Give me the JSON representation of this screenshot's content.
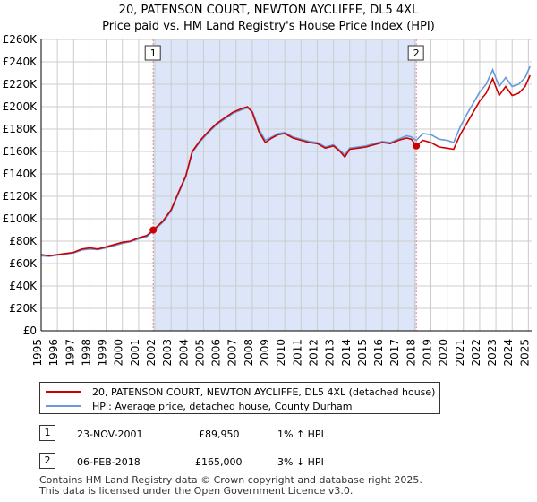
{
  "title_line1": "20, PATENSON COURT, NEWTON AYCLIFFE, DL5 4XL",
  "title_line2": "Price paid vs. HM Land Registry's House Price Index (HPI)",
  "colors": {
    "property": "#cc0000",
    "hpi": "#6699dd",
    "shade": "#dde6f8",
    "grid": "#cccccc",
    "marker_line": "#e08080"
  },
  "chart_data": {
    "type": "line",
    "title": "Price paid vs. HM Land Registry's House Price Index (HPI)",
    "xlabel": "",
    "ylabel": "",
    "xlim": [
      1995,
      2025.2
    ],
    "ylim": [
      0,
      260000
    ],
    "y_ticks": [
      0,
      20000,
      40000,
      60000,
      80000,
      100000,
      120000,
      140000,
      160000,
      180000,
      200000,
      220000,
      240000,
      260000
    ],
    "y_tick_labels": [
      "£0",
      "£20K",
      "£40K",
      "£60K",
      "£80K",
      "£100K",
      "£120K",
      "£140K",
      "£160K",
      "£180K",
      "£200K",
      "£220K",
      "£240K",
      "£260K"
    ],
    "x_ticks": [
      1995,
      1996,
      1997,
      1998,
      1999,
      2000,
      2001,
      2002,
      2003,
      2004,
      2005,
      2006,
      2007,
      2008,
      2009,
      2010,
      2011,
      2012,
      2013,
      2014,
      2015,
      2016,
      2017,
      2018,
      2019,
      2020,
      2021,
      2022,
      2023,
      2024,
      2025
    ],
    "x_tick_labels": [
      "1995",
      "1996",
      "1997",
      "1998",
      "1999",
      "2000",
      "2001",
      "2002",
      "2003",
      "2004",
      "2005",
      "2006",
      "2007",
      "2008",
      "2009",
      "2010",
      "2011",
      "2012",
      "2013",
      "2014",
      "2015",
      "2016",
      "2017",
      "2018",
      "2019",
      "2020",
      "2021",
      "2022",
      "2023",
      "2024",
      "2025"
    ],
    "shaded_range": [
      2001.9,
      2018.1
    ],
    "series": [
      {
        "name": "20, PATENSON COURT, NEWTON AYCLIFFE, DL5 4XL (detached house)",
        "color": "#cc0000",
        "points": [
          [
            1995.0,
            68000
          ],
          [
            1995.5,
            67000
          ],
          [
            1996.0,
            68000
          ],
          [
            1996.5,
            69000
          ],
          [
            1997.0,
            70000
          ],
          [
            1997.5,
            73000
          ],
          [
            1998.0,
            74000
          ],
          [
            1998.5,
            73000
          ],
          [
            1999.0,
            75000
          ],
          [
            1999.5,
            77000
          ],
          [
            2000.0,
            79000
          ],
          [
            2000.5,
            80000
          ],
          [
            2001.0,
            83000
          ],
          [
            2001.5,
            85000
          ],
          [
            2001.9,
            89950
          ],
          [
            2002.5,
            98000
          ],
          [
            2003.0,
            108000
          ],
          [
            2003.5,
            125000
          ],
          [
            2003.9,
            138000
          ],
          [
            2004.3,
            160000
          ],
          [
            2004.8,
            170000
          ],
          [
            2005.3,
            178000
          ],
          [
            2005.8,
            185000
          ],
          [
            2006.3,
            190000
          ],
          [
            2006.8,
            195000
          ],
          [
            2007.3,
            198000
          ],
          [
            2007.7,
            200000
          ],
          [
            2008.0,
            195000
          ],
          [
            2008.4,
            178000
          ],
          [
            2008.8,
            168000
          ],
          [
            2009.2,
            172000
          ],
          [
            2009.6,
            175000
          ],
          [
            2010.0,
            176000
          ],
          [
            2010.5,
            172000
          ],
          [
            2011.0,
            170000
          ],
          [
            2011.5,
            168000
          ],
          [
            2012.0,
            167000
          ],
          [
            2012.5,
            163000
          ],
          [
            2013.0,
            165000
          ],
          [
            2013.4,
            160000
          ],
          [
            2013.7,
            155000
          ],
          [
            2014.0,
            162000
          ],
          [
            2014.5,
            163000
          ],
          [
            2015.0,
            164000
          ],
          [
            2015.5,
            166000
          ],
          [
            2016.0,
            168000
          ],
          [
            2016.5,
            167000
          ],
          [
            2017.0,
            170000
          ],
          [
            2017.5,
            172000
          ],
          [
            2017.8,
            171000
          ],
          [
            2018.1,
            165000
          ],
          [
            2018.5,
            170000
          ],
          [
            2019.0,
            168000
          ],
          [
            2019.5,
            164000
          ],
          [
            2020.0,
            163000
          ],
          [
            2020.4,
            162000
          ],
          [
            2020.8,
            175000
          ],
          [
            2021.2,
            185000
          ],
          [
            2021.6,
            195000
          ],
          [
            2022.0,
            205000
          ],
          [
            2022.4,
            212000
          ],
          [
            2022.8,
            225000
          ],
          [
            2023.2,
            210000
          ],
          [
            2023.6,
            218000
          ],
          [
            2024.0,
            210000
          ],
          [
            2024.4,
            212000
          ],
          [
            2024.8,
            218000
          ],
          [
            2025.1,
            228000
          ]
        ]
      },
      {
        "name": "HPI: Average price, detached house, County Durham",
        "color": "#6699dd",
        "points": [
          [
            1995.0,
            67000
          ],
          [
            1995.5,
            66500
          ],
          [
            1996.0,
            67500
          ],
          [
            1996.5,
            68500
          ],
          [
            1997.0,
            69500
          ],
          [
            1997.5,
            72000
          ],
          [
            1998.0,
            73000
          ],
          [
            1998.5,
            72500
          ],
          [
            1999.0,
            74000
          ],
          [
            1999.5,
            76000
          ],
          [
            2000.0,
            78000
          ],
          [
            2000.5,
            79500
          ],
          [
            2001.0,
            82000
          ],
          [
            2001.5,
            84000
          ],
          [
            2001.9,
            89000
          ],
          [
            2002.5,
            97000
          ],
          [
            2003.0,
            107000
          ],
          [
            2003.5,
            124000
          ],
          [
            2003.9,
            137000
          ],
          [
            2004.3,
            159000
          ],
          [
            2004.8,
            169000
          ],
          [
            2005.3,
            177000
          ],
          [
            2005.8,
            184000
          ],
          [
            2006.3,
            189000
          ],
          [
            2006.8,
            194000
          ],
          [
            2007.3,
            197000
          ],
          [
            2007.7,
            199000
          ],
          [
            2008.0,
            196000
          ],
          [
            2008.4,
            180000
          ],
          [
            2008.8,
            170000
          ],
          [
            2009.2,
            173000
          ],
          [
            2009.6,
            176000
          ],
          [
            2010.0,
            177000
          ],
          [
            2010.5,
            173000
          ],
          [
            2011.0,
            171000
          ],
          [
            2011.5,
            169000
          ],
          [
            2012.0,
            168000
          ],
          [
            2012.5,
            164000
          ],
          [
            2013.0,
            166000
          ],
          [
            2013.4,
            161000
          ],
          [
            2013.7,
            157000
          ],
          [
            2014.0,
            163000
          ],
          [
            2014.5,
            164000
          ],
          [
            2015.0,
            165000
          ],
          [
            2015.5,
            167000
          ],
          [
            2016.0,
            169000
          ],
          [
            2016.5,
            168000
          ],
          [
            2017.0,
            171000
          ],
          [
            2017.5,
            174000
          ],
          [
            2017.8,
            173000
          ],
          [
            2018.1,
            170000
          ],
          [
            2018.5,
            176000
          ],
          [
            2019.0,
            175000
          ],
          [
            2019.5,
            171000
          ],
          [
            2020.0,
            170000
          ],
          [
            2020.4,
            168000
          ],
          [
            2020.8,
            182000
          ],
          [
            2021.2,
            193000
          ],
          [
            2021.6,
            203000
          ],
          [
            2022.0,
            213000
          ],
          [
            2022.4,
            220000
          ],
          [
            2022.8,
            233000
          ],
          [
            2023.2,
            218000
          ],
          [
            2023.6,
            226000
          ],
          [
            2024.0,
            218000
          ],
          [
            2024.4,
            220000
          ],
          [
            2024.8,
            226000
          ],
          [
            2025.1,
            236000
          ]
        ]
      }
    ],
    "annotations": [
      {
        "label": "1",
        "x": 2001.9,
        "y": 89950
      },
      {
        "label": "2",
        "x": 2018.1,
        "y": 165000
      }
    ]
  },
  "legend": {
    "property": "20, PATENSON COURT, NEWTON AYCLIFFE, DL5 4XL (detached house)",
    "hpi": "HPI: Average price, detached house, County Durham"
  },
  "transactions": [
    {
      "num": "1",
      "date": "23-NOV-2001",
      "price": "£89,950",
      "hpi": "1% ↑ HPI"
    },
    {
      "num": "2",
      "date": "06-FEB-2018",
      "price": "£165,000",
      "hpi": "3% ↓ HPI"
    }
  ],
  "footer": {
    "line1": "Contains HM Land Registry data © Crown copyright and database right 2025.",
    "line2": "This data is licensed under the Open Government Licence v3.0."
  }
}
